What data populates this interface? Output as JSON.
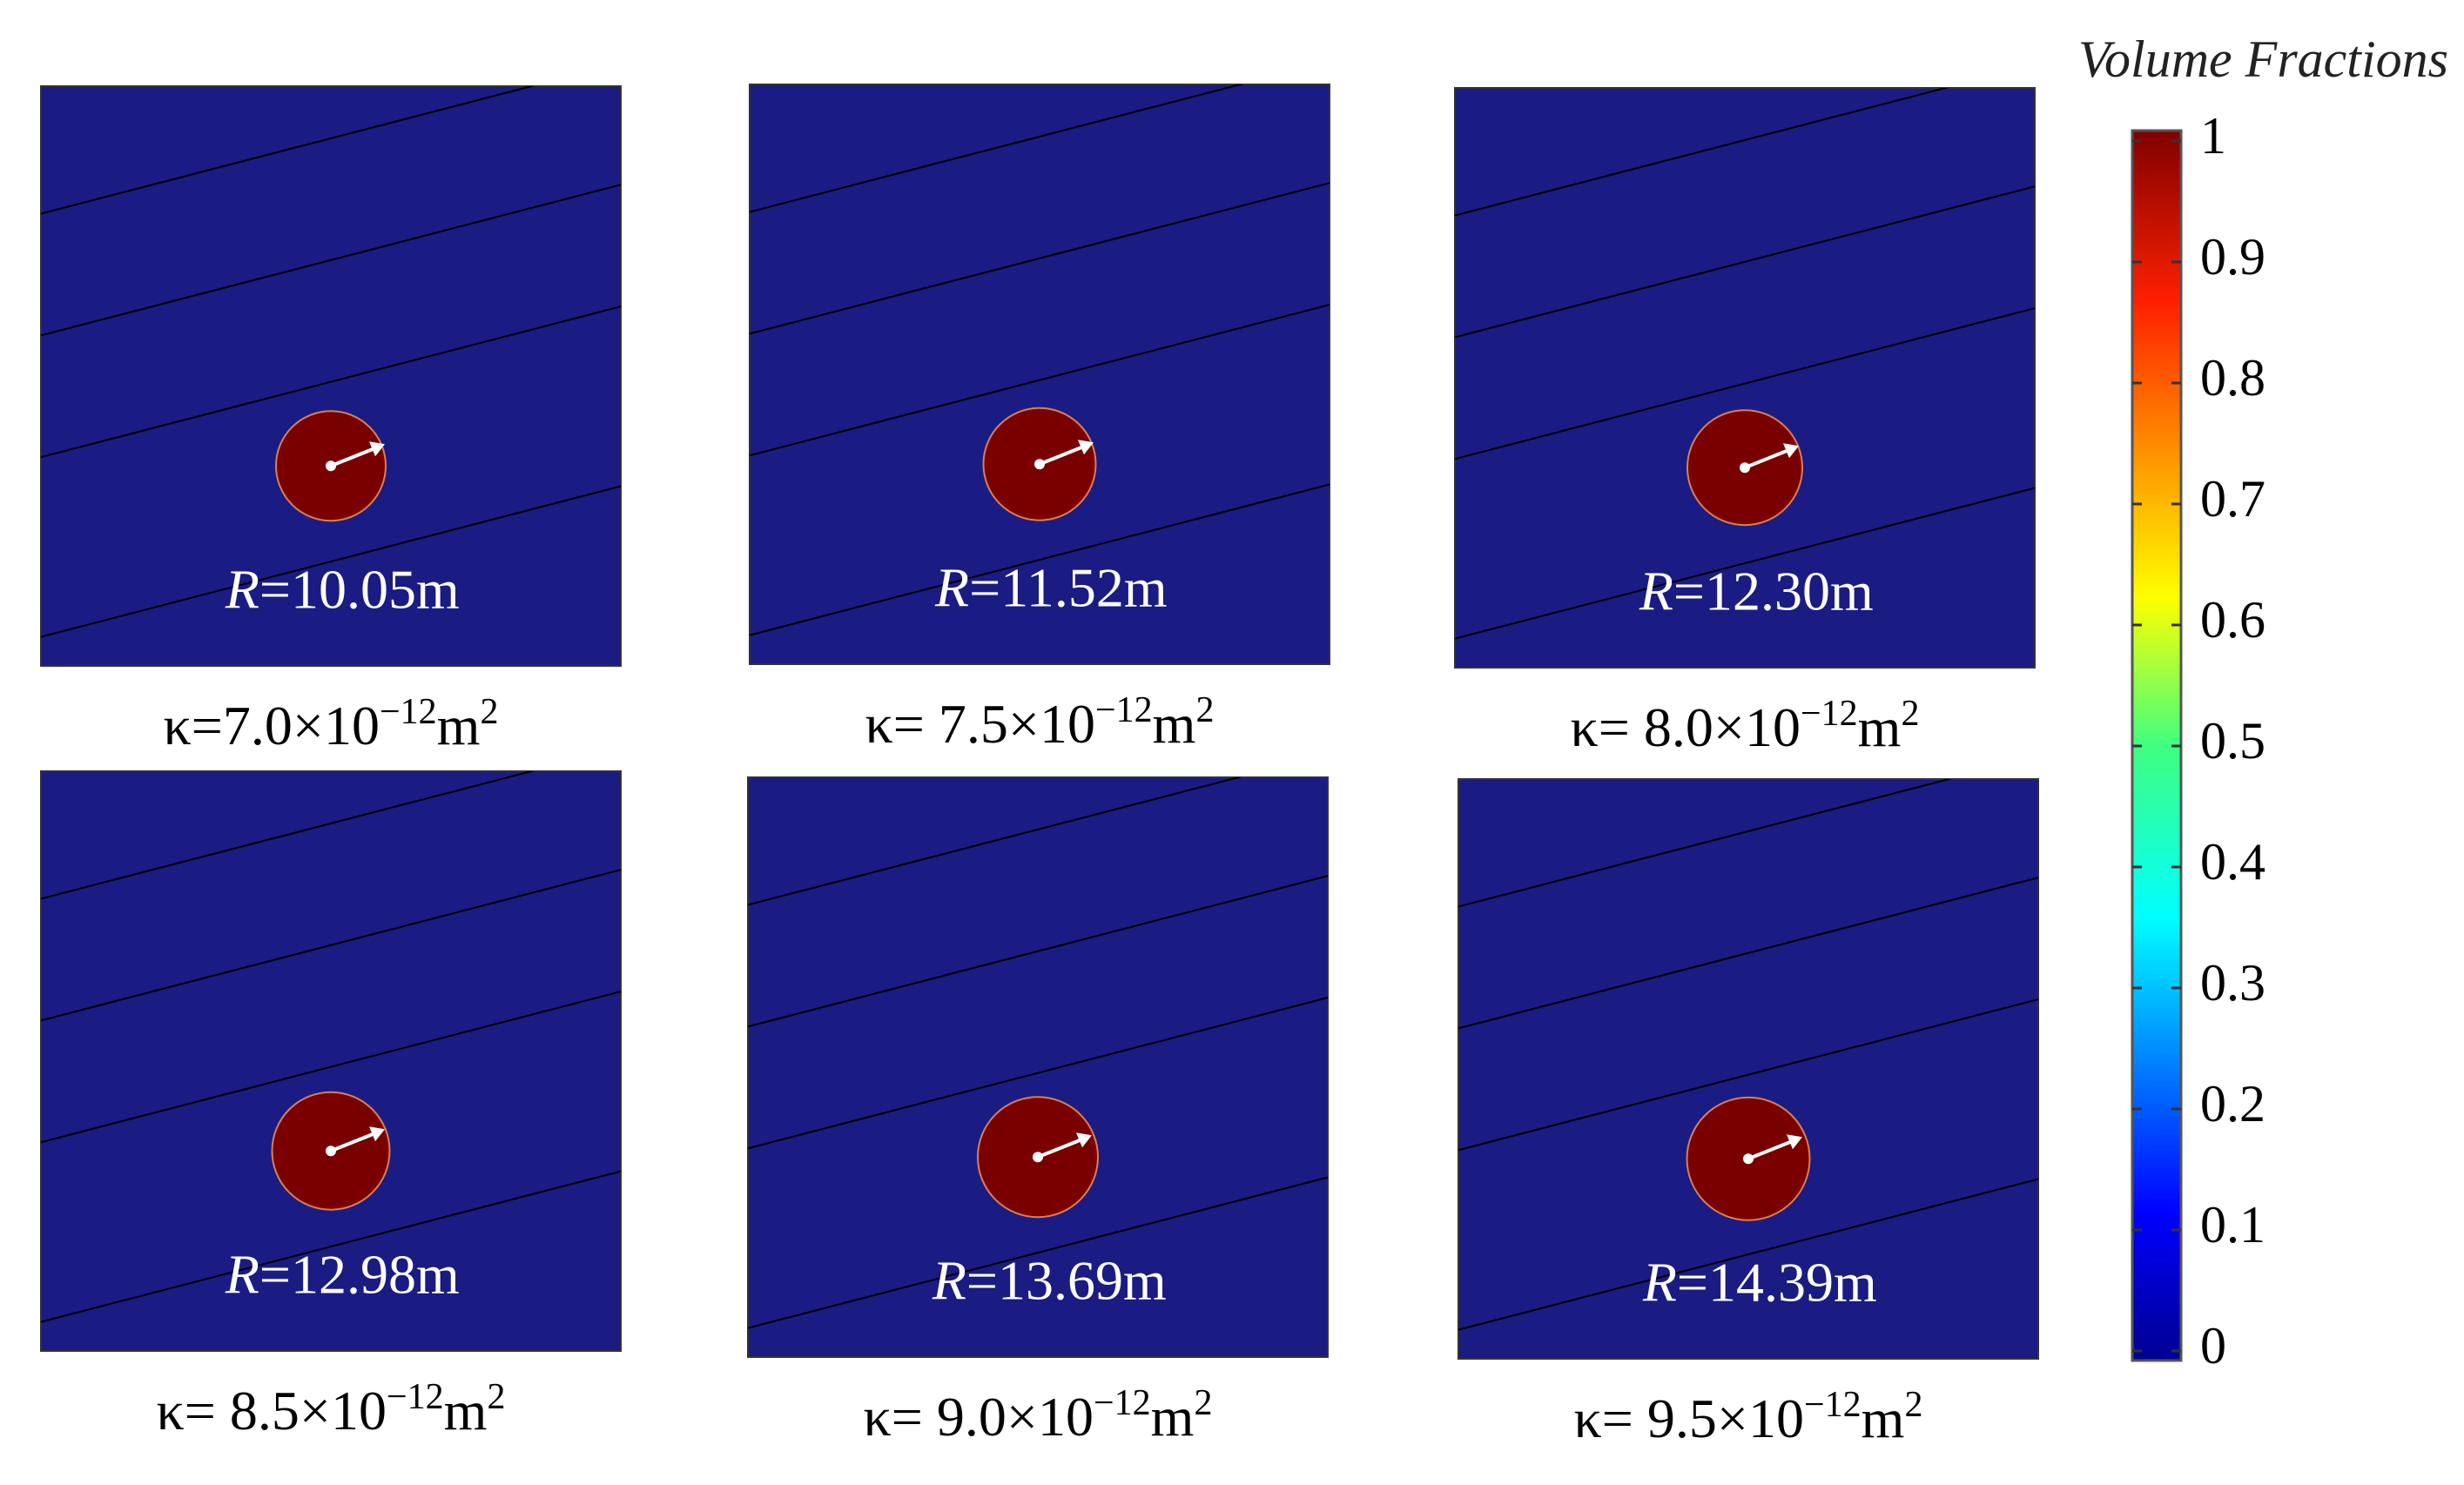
{
  "panels": [
    {
      "radius_label": {
        "symbol": "R",
        "value": "=10.05m"
      },
      "permeability_label": {
        "base": "κ=7.0×10",
        "exponent": "−12",
        "unit": "m",
        "unit_exponent": "2"
      }
    },
    {
      "radius_label": {
        "symbol": "R",
        "value": "=11.52m"
      },
      "permeability_label": {
        "base": "κ= 7.5×10",
        "exponent": "−12",
        "unit": "m",
        "unit_exponent": "2"
      }
    },
    {
      "radius_label": {
        "symbol": "R",
        "value": "=12.30m"
      },
      "permeability_label": {
        "base": "κ= 8.0×10",
        "exponent": "−12",
        "unit": "m",
        "unit_exponent": "2"
      }
    },
    {
      "radius_label": {
        "symbol": "R",
        "value": "=12.98m"
      },
      "permeability_label": {
        "base": "κ= 8.5×10",
        "exponent": "−12",
        "unit": "m",
        "unit_exponent": "2"
      }
    },
    {
      "radius_label": {
        "symbol": "R",
        "value": "=13.69m"
      },
      "permeability_label": {
        "base": "κ= 9.0×10",
        "exponent": "−12",
        "unit": "m",
        "unit_exponent": "2"
      }
    },
    {
      "radius_label": {
        "symbol": "R",
        "value": "=14.39m"
      },
      "permeability_label": {
        "base": "κ= 9.5×10",
        "exponent": "−12",
        "unit": "m",
        "unit_exponent": "2"
      }
    }
  ],
  "colorbar": {
    "title": "Volume Fractions",
    "range": [
      0,
      1
    ],
    "ticks": [
      0,
      0.1,
      0.2,
      0.3,
      0.4,
      0.5,
      0.6,
      0.7,
      0.8,
      0.9,
      1
    ]
  }
}
